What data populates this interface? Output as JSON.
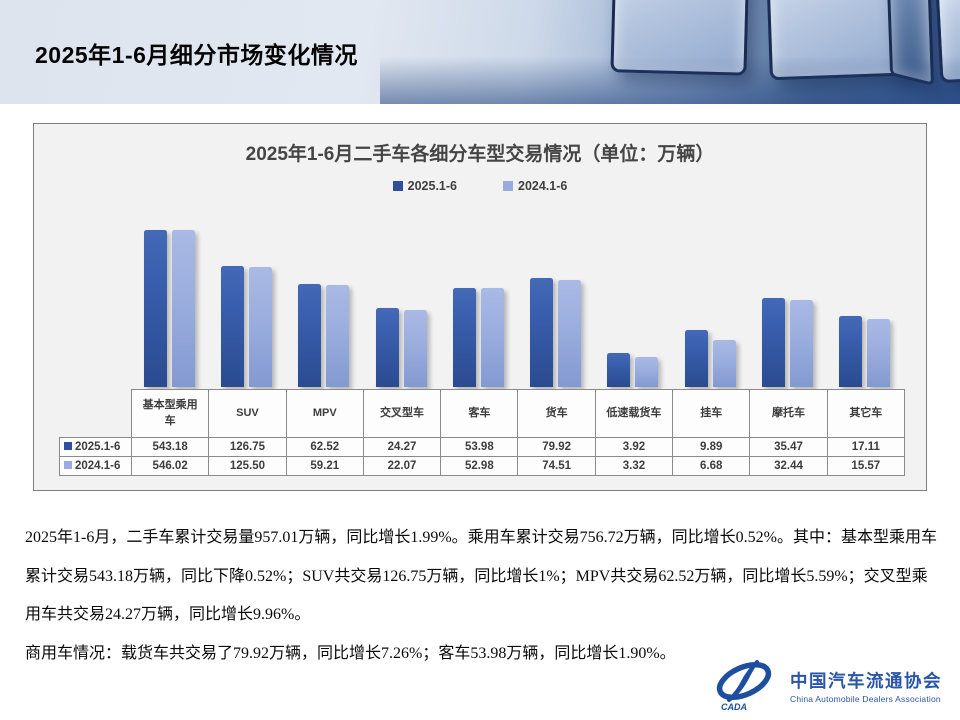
{
  "header": {
    "title": "2025年1-6月细分市场变化情况"
  },
  "chart": {
    "title": "2025年1-6月二手车各细分车型交易情况（单位：万辆）",
    "legend": [
      {
        "label": "2025.1-6",
        "color": "#2d4f9e"
      },
      {
        "label": "2024.1-6",
        "color": "#9aabdd"
      }
    ],
    "panel_bg": "#f2f2f2",
    "border_color": "#7c7c7c"
  },
  "chart_data": {
    "type": "bar",
    "title": "2025年1-6月二手车各细分车型交易情况（单位：万辆）",
    "unit": "万辆",
    "categories": [
      "基本型乘用车",
      "SUV",
      "MPV",
      "交叉型车",
      "客车",
      "货车",
      "低速载货车",
      "挂车",
      "摩托车",
      "其它车"
    ],
    "series": [
      {
        "name": "2025.1-6",
        "color": "#2d4f9e",
        "values": [
          543.18,
          126.75,
          62.52,
          24.27,
          53.98,
          79.92,
          3.92,
          9.89,
          35.47,
          17.11
        ]
      },
      {
        "name": "2024.1-6",
        "color": "#9aabdd",
        "values": [
          546.02,
          125.5,
          59.21,
          22.07,
          52.98,
          74.51,
          3.32,
          6.68,
          32.44,
          15.57
        ]
      }
    ],
    "yscale": "log",
    "ylim": [
      1,
      1000
    ],
    "grid": false,
    "legend_position": "top",
    "data_table_shown": true,
    "value_format": "0.00"
  },
  "summary": {
    "paragraph1": "2025年1-6月，二手车累计交易量957.01万辆，同比增长1.99%。乘用车累计交易756.72万辆，同比增长0.52%。其中：基本型乘用车累计交易543.18万辆，同比下降0.52%；SUV共交易126.75万辆，同比增长1%；MPV共交易62.52万辆，同比增长5.59%；交叉型乘用车共交易24.27万辆，同比增长9.96%。",
    "paragraph2": "商用车情况：载货车共交易了79.92万辆，同比增长7.26%；客车53.98万辆，同比增长1.90%。"
  },
  "logo": {
    "badge": "CADA",
    "name_cn": "中国汽车流通协会",
    "name_en": "China Automobile Dealers Association",
    "color": "#2a55a8"
  }
}
